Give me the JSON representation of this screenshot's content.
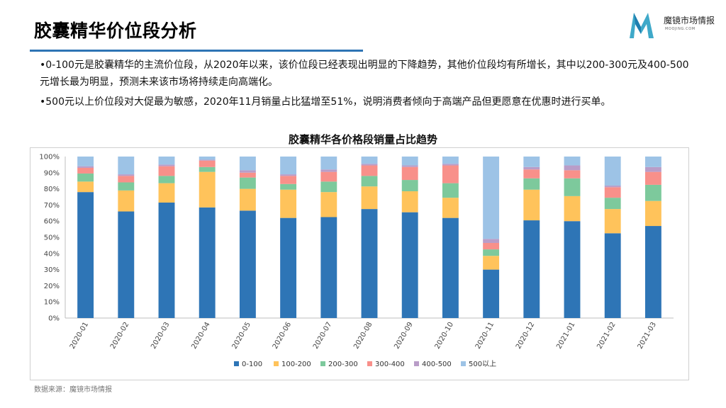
{
  "header": {
    "title": "胶囊精华价位段分析",
    "logo_text": "魔镜市场情报",
    "logo_sub": "MOOJING.COM"
  },
  "bullets": [
    "•0-100元是胶囊精华的主流价位段，从2020年以来，该价位段已经表现出明显的下降趋势，其他价位段均有所增长，其中以200-300元及400-500元增长最为明显，预测未来该市场将持续走向高端化。",
    "•500元以上价位段对大促最为敏感，2020年11月销量占比猛增至51%，说明消费者倾向于高端产品但更愿意在优惠时进行买单。"
  ],
  "source": "数据来源：魔镜市场情报",
  "colors": {
    "accent": "#2e74b5",
    "series": [
      "#2e75b6",
      "#ffc35b",
      "#7dc99c",
      "#f8908a",
      "#b99dc8",
      "#9dc3e6"
    ]
  },
  "chart_data": {
    "type": "bar",
    "stacked": true,
    "title": "胶囊精华各价格段销量占比趋势",
    "categories": [
      "2020-01",
      "2020-02",
      "2020-03",
      "2020-04",
      "2020-05",
      "2020-06",
      "2020-07",
      "2020-08",
      "2020-09",
      "2020-10",
      "2020-11",
      "2020-12",
      "2021-01",
      "2021-02",
      "2021-03"
    ],
    "series": [
      {
        "name": "0-100",
        "values": [
          78,
          66,
          71.5,
          68.5,
          66.5,
          62,
          62.5,
          67.5,
          65.5,
          62,
          30,
          60.5,
          60,
          52.5,
          57
        ]
      },
      {
        "name": "100-200",
        "values": [
          6.5,
          13,
          12,
          22,
          13.5,
          17.5,
          15.5,
          14,
          13,
          12.5,
          8.5,
          19,
          15.5,
          15,
          15.5
        ]
      },
      {
        "name": "200-300",
        "values": [
          5,
          5,
          4.5,
          3,
          7,
          3.5,
          6.5,
          6.5,
          7,
          9,
          4,
          7,
          11,
          7,
          10
        ]
      },
      {
        "name": "300-400",
        "values": [
          3.5,
          4,
          6,
          4,
          3,
          5,
          6,
          6.5,
          8,
          11,
          4,
          5.5,
          5,
          6.5,
          8
        ]
      },
      {
        "name": "400-500",
        "values": [
          1,
          1,
          1,
          0.5,
          1.5,
          1,
          1.5,
          1,
          1,
          1,
          2.5,
          1.5,
          3,
          1,
          3
        ]
      },
      {
        "name": "500以上",
        "values": [
          6,
          11,
          5,
          2,
          8.5,
          11,
          8,
          4.5,
          5.5,
          4.5,
          51,
          6.5,
          5.5,
          18,
          6.5
        ]
      }
    ],
    "ylim": [
      0,
      100
    ],
    "yticks": [
      "0%",
      "10%",
      "20%",
      "30%",
      "40%",
      "50%",
      "60%",
      "70%",
      "80%",
      "90%",
      "100%"
    ],
    "xlabel": "",
    "ylabel": "",
    "grid": false,
    "legend": "bottom"
  }
}
